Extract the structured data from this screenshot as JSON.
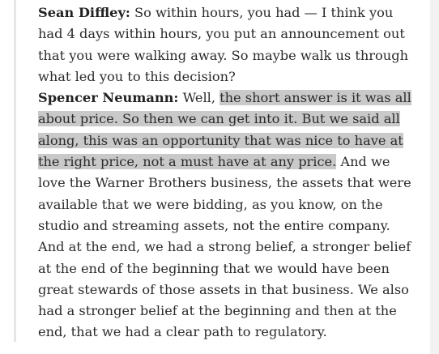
{
  "transcript": {
    "entries": [
      {
        "speaker": "Sean Diffley:",
        "text": "So within hours, you had — I think you had 4 days within hours, you put an announcement out that you were walking away. So maybe walk us through what led you to this decision?"
      },
      {
        "speaker": "Spencer Neumann:",
        "text_before": "Well, ",
        "text_highlighted": "the short answer is it was all about price. So then we can get into it. But we said all along, this was an opportunity that was nice to have at the right price, not a must have at any price.",
        "text_after": "And we love the Warner Brothers business, the assets that were available that we were bidding, as you know, on the studio and streaming assets, not the entire company. And at the end, we had a strong belief, a stronger belief at the end of the beginning that we would have been great stewards of those assets in that business. We also had a stronger belief at the beginning and then at the end, that we had a clear path to regulatory."
      }
    ]
  },
  "colors": {
    "highlight": "#c9c9c9",
    "text": "#2b2b2b",
    "left_rule": "#e6e6e6",
    "right_bar": "#f2f2f2"
  }
}
